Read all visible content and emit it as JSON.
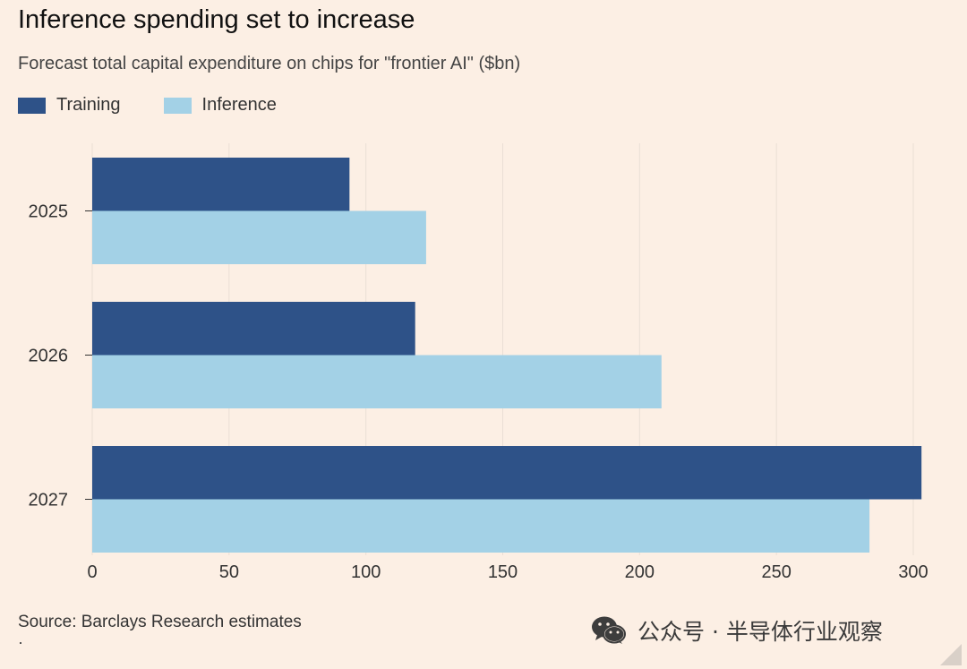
{
  "title": "Inference spending set to increase",
  "subtitle": "Forecast total capital expenditure on chips for \"frontier AI\" ($bn)",
  "legend": [
    {
      "label": "Training",
      "color": "#2e5288"
    },
    {
      "label": "Inference",
      "color": "#a3d1e6"
    }
  ],
  "source": "Source: Barclays Research estimates",
  "watermark": "公众号 · 半导体行业观察",
  "chart_data": {
    "type": "bar",
    "orientation": "horizontal",
    "title": "Inference spending set to increase",
    "subtitle": "Forecast total capital expenditure on chips for \"frontier AI\" ($bn)",
    "categories": [
      "2025",
      "2026",
      "2027"
    ],
    "series": [
      {
        "name": "Training",
        "color": "#2e5288",
        "values": [
          94,
          118,
          303
        ]
      },
      {
        "name": "Inference",
        "color": "#a3d1e6",
        "values": [
          122,
          208,
          284
        ]
      }
    ],
    "xlim": [
      0,
      300
    ],
    "xticks": [
      "0",
      "50",
      "100",
      "150",
      "200",
      "250",
      "300"
    ],
    "grid": "vertical",
    "legend_position": "top-left"
  }
}
